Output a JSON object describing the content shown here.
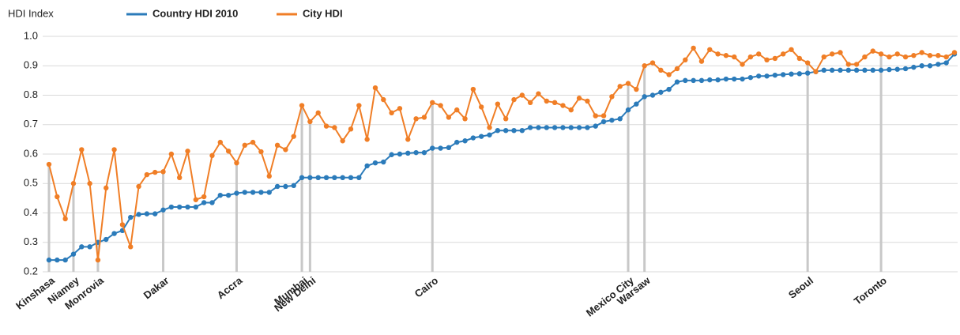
{
  "chart_data": {
    "type": "line",
    "y_label": "HDI Index",
    "categories": [
      "Kinshasa",
      null,
      null,
      "Niamey",
      null,
      null,
      "Monrovia",
      null,
      null,
      null,
      null,
      null,
      null,
      null,
      "Dakar",
      null,
      null,
      null,
      null,
      null,
      null,
      null,
      null,
      "Accra",
      null,
      null,
      null,
      null,
      null,
      null,
      null,
      "Mumbai",
      "New Delhi",
      null,
      null,
      null,
      null,
      null,
      null,
      null,
      null,
      null,
      null,
      null,
      null,
      null,
      null,
      "Cairo",
      null,
      null,
      null,
      null,
      null,
      null,
      null,
      null,
      null,
      null,
      null,
      null,
      null,
      null,
      null,
      null,
      null,
      null,
      null,
      null,
      null,
      null,
      null,
      "Mexico City",
      null,
      "Warsaw",
      null,
      null,
      null,
      null,
      null,
      null,
      null,
      null,
      null,
      null,
      null,
      null,
      null,
      null,
      null,
      null,
      null,
      null,
      null,
      "Seoul",
      null,
      null,
      null,
      null,
      null,
      null,
      null,
      null,
      "Toronto",
      null,
      null,
      null,
      null,
      null,
      null,
      null,
      null,
      null
    ],
    "series": [
      {
        "name": "Country HDI 2010",
        "color": "#2b7bba",
        "values": [
          0.24,
          0.24,
          0.24,
          0.26,
          0.285,
          0.285,
          0.3,
          0.31,
          0.33,
          0.34,
          0.385,
          0.395,
          0.397,
          0.397,
          0.41,
          0.42,
          0.42,
          0.42,
          0.42,
          0.435,
          0.435,
          0.46,
          0.46,
          0.467,
          0.47,
          0.47,
          0.47,
          0.47,
          0.49,
          0.49,
          0.493,
          0.52,
          0.52,
          0.52,
          0.52,
          0.52,
          0.52,
          0.52,
          0.52,
          0.56,
          0.57,
          0.573,
          0.598,
          0.6,
          0.603,
          0.605,
          0.605,
          0.62,
          0.62,
          0.622,
          0.64,
          0.645,
          0.655,
          0.66,
          0.665,
          0.68,
          0.68,
          0.68,
          0.68,
          0.69,
          0.69,
          0.69,
          0.69,
          0.69,
          0.69,
          0.69,
          0.69,
          0.695,
          0.71,
          0.715,
          0.72,
          0.75,
          0.77,
          0.795,
          0.8,
          0.81,
          0.82,
          0.845,
          0.85,
          0.85,
          0.85,
          0.852,
          0.852,
          0.855,
          0.855,
          0.855,
          0.86,
          0.865,
          0.865,
          0.868,
          0.87,
          0.872,
          0.873,
          0.875,
          0.88,
          0.885,
          0.885,
          0.885,
          0.885,
          0.885,
          0.885,
          0.885,
          0.885,
          0.887,
          0.888,
          0.89,
          0.895,
          0.9,
          0.9,
          0.905,
          0.91,
          0.94
        ]
      },
      {
        "name": "City HDI",
        "color": "#f07e26",
        "values": [
          0.565,
          0.455,
          0.38,
          0.5,
          0.615,
          0.5,
          0.24,
          0.485,
          0.615,
          0.36,
          0.285,
          0.49,
          0.53,
          0.538,
          0.54,
          0.6,
          0.52,
          0.61,
          0.445,
          0.455,
          0.595,
          0.64,
          0.61,
          0.57,
          0.63,
          0.64,
          0.608,
          0.525,
          0.63,
          0.615,
          0.66,
          0.765,
          0.71,
          0.74,
          0.695,
          0.69,
          0.645,
          0.685,
          0.765,
          0.65,
          0.825,
          0.785,
          0.74,
          0.755,
          0.65,
          0.72,
          0.725,
          0.775,
          0.765,
          0.725,
          0.75,
          0.72,
          0.82,
          0.76,
          0.69,
          0.77,
          0.72,
          0.785,
          0.8,
          0.775,
          0.805,
          0.78,
          0.775,
          0.765,
          0.75,
          0.79,
          0.78,
          0.73,
          0.73,
          0.795,
          0.83,
          0.84,
          0.82,
          0.9,
          0.91,
          0.885,
          0.87,
          0.89,
          0.92,
          0.96,
          0.915,
          0.955,
          0.94,
          0.935,
          0.93,
          0.905,
          0.93,
          0.94,
          0.92,
          0.925,
          0.94,
          0.955,
          0.925,
          0.91,
          0.88,
          0.93,
          0.94,
          0.945,
          0.905,
          0.905,
          0.93,
          0.95,
          0.94,
          0.93,
          0.94,
          0.93,
          0.935,
          0.945,
          0.935,
          0.935,
          0.93,
          0.945
        ]
      }
    ],
    "ylim": [
      0.2,
      1.0
    ],
    "yticks": [
      0.2,
      0.3,
      0.4,
      0.5,
      0.6,
      0.7,
      0.8,
      0.9,
      {
        "value": 1,
        "label": "1.0"
      }
    ],
    "grid": true
  }
}
